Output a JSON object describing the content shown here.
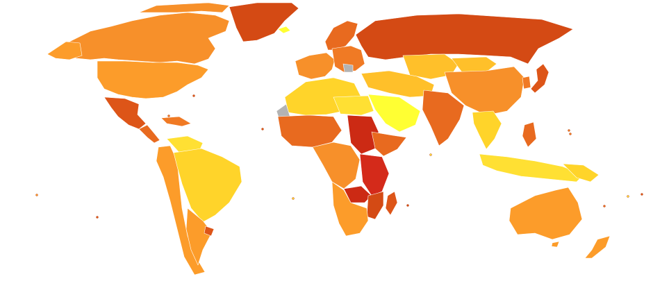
{
  "palette": {
    "ocean": "#ffffff",
    "no_data": "#b3b3b3",
    "level_1": "#ffff33",
    "level_2": "#ffe033",
    "level_3": "#ffd42a",
    "level_4": "#ffc02a",
    "level_5": "#fc9c2a",
    "level_6": "#f7902a",
    "level_7": "#f07a24",
    "level_8": "#e86a1f",
    "level_9": "#dd5518",
    "level_10": "#d44a14",
    "level_11": "#cc2a14",
    "level_12": "#d42a1a"
  },
  "regions": {
    "greenland": "level_10",
    "canada": "level_6",
    "usa": "level_5",
    "mexico": "level_9",
    "central_america": "level_8",
    "caribbean": "level_7",
    "brazil": "level_3",
    "andes": "level_5",
    "south_cone": "level_5",
    "uruguay": "level_9",
    "guianas": "level_2",
    "iceland": "level_1",
    "scandinavia": "level_8",
    "west_europe": "level_6",
    "east_europe": "level_7",
    "balkans_gap": "no_data",
    "russia": "level_10",
    "north_africa": "level_3",
    "western_sahara": "no_data",
    "egypt_libya": "level_2",
    "arabia": "level_1",
    "middle_east": "level_4",
    "central_asia": "level_4",
    "south_asia": "level_8",
    "china": "level_6",
    "mongolia": "level_4",
    "japan": "level_9",
    "korea": "level_7",
    "southeast_asia": "level_3",
    "indonesia": "level_2",
    "west_africa": "level_8",
    "central_africa": "level_6",
    "sudan_south": "level_11",
    "east_africa": "level_12",
    "horn_of_africa": "level_8",
    "southern_africa": "level_5",
    "zambia_malawi": "level_11",
    "mozambique": "level_10",
    "madagascar": "level_9",
    "australia": "level_5",
    "new_zealand": "level_5",
    "papua": "level_3"
  }
}
